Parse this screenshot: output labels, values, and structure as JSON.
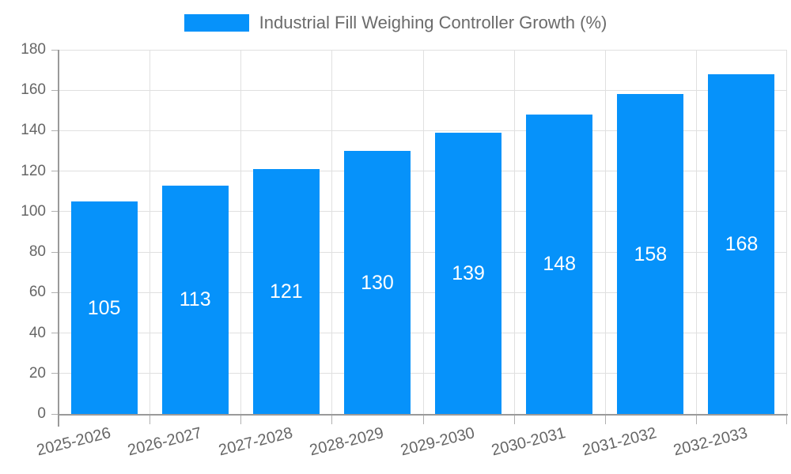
{
  "legend": {
    "label": "Industrial Fill Weighing Controller Growth (%)"
  },
  "chart_data": {
    "type": "bar",
    "title": "Industrial Fill Weighing Controller Growth (%)",
    "categories": [
      "2025-2026",
      "2026-2027",
      "2027-2028",
      "2028-2029",
      "2029-2030",
      "2030-2031",
      "2031-2032",
      "2032-2033"
    ],
    "values": [
      105,
      113,
      121,
      130,
      139,
      148,
      158,
      168
    ],
    "xlabel": "",
    "ylabel": "",
    "ylim": [
      0,
      180
    ],
    "yticks": [
      0,
      20,
      40,
      60,
      80,
      100,
      120,
      140,
      160,
      180
    ],
    "grid": true,
    "legend_position": "top-center",
    "bar_color": "#0692fa",
    "value_label_color": "#ffffff"
  },
  "colors": {
    "bar": "#0692fa",
    "grid": "#e0e0e0",
    "axis": "#9a9a9a",
    "tick": "#b0b0b0",
    "axis_label_text": "#666666",
    "legend_text": "#6b6b6b",
    "value_text": "#ffffff",
    "background": "#ffffff"
  }
}
